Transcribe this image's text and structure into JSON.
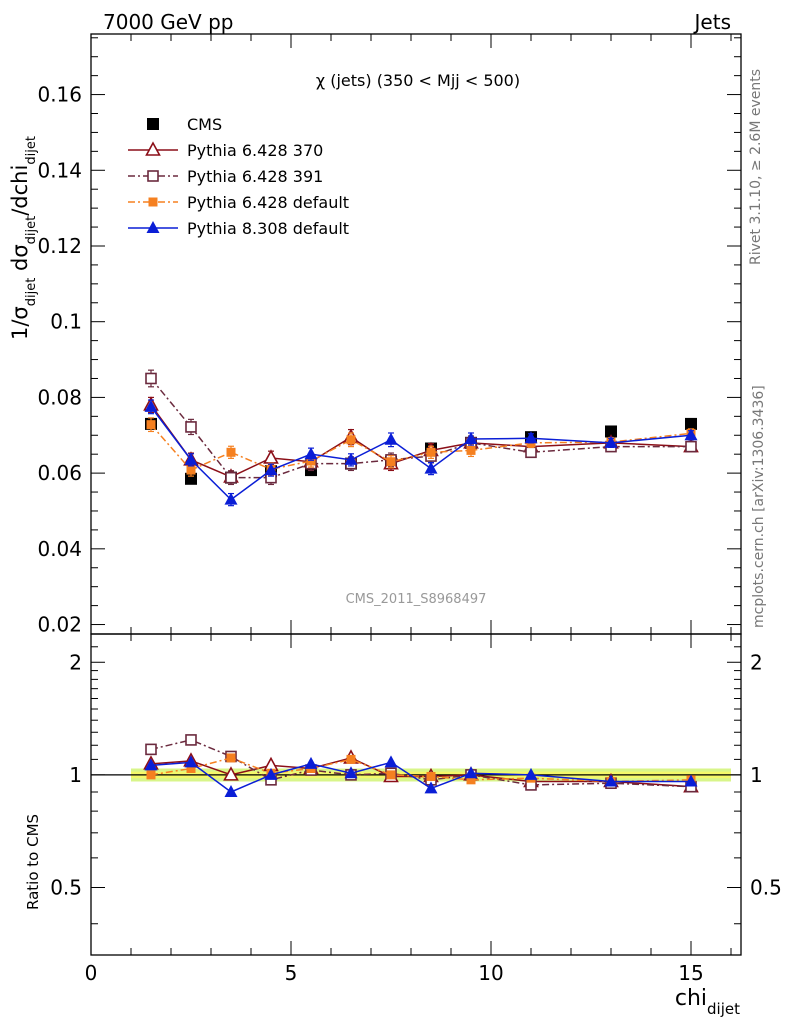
{
  "header": {
    "left": "7000 GeV pp",
    "right": "Jets"
  },
  "side_labels": {
    "rivet": "Rivet 3.1.10, ≥ 2.6M events",
    "mcplots": "mcplots.cern.ch [arXiv:1306.3436]"
  },
  "chart_data": {
    "type": "scatter",
    "title": "χ (jets) (350 < Mjj <  500)",
    "watermark": "CMS_2011_S8968497",
    "xlabel_main": "chi",
    "xlabel_sub": "dijet",
    "ylabel": "1/σ_dijet dσ_dijet/dchi_dijet",
    "ratio_ylabel": "Ratio to CMS",
    "xlim": [
      0,
      16.25
    ],
    "ylim": [
      0.0175,
      0.176
    ],
    "ratio_ylim": [
      0.33,
      2.38
    ],
    "ratio_scale": "log",
    "x_ticks": [
      0,
      5,
      10,
      15
    ],
    "y_ticks": [
      0.02,
      0.04,
      0.06,
      0.08,
      0.1,
      0.12,
      0.14,
      0.16
    ],
    "y_tick_labels": [
      "0.02",
      "0.04",
      "0.06",
      "0.08",
      "0.1",
      "0.12",
      "0.14",
      "0.16"
    ],
    "ratio_ticks": [
      0.5,
      1,
      2
    ],
    "ratio_tick_labels": [
      "0.5",
      "1",
      "2"
    ],
    "x": [
      1.5,
      2.5,
      3.5,
      4.5,
      5.5,
      6.5,
      7.5,
      8.5,
      9.5,
      11,
      13,
      15
    ],
    "bin_edges": [
      1,
      2,
      3,
      4,
      5,
      6,
      7,
      8,
      9,
      10,
      12,
      14,
      16
    ],
    "legend_position": "top-left",
    "series": [
      {
        "name": "CMS",
        "color": "#000000",
        "marker": "square-filled",
        "line": "none",
        "values": [
          0.073,
          0.0585,
          0.0588,
          0.0605,
          0.0608,
          0.0625,
          0.063,
          0.0665,
          0.068,
          0.0695,
          0.071,
          0.073
        ],
        "errors": [
          0.0012,
          0.0012,
          0.0012,
          0.0012,
          0.0012,
          0.0012,
          0.0012,
          0.0012,
          0.0012,
          0.0012,
          0.0012,
          0.0012
        ],
        "ratio": [
          1,
          1,
          1,
          1,
          1,
          1,
          1,
          1,
          1,
          1,
          1,
          1
        ]
      },
      {
        "name": "Pythia 6.428 370",
        "color": "#8b0f18",
        "marker": "triangle-open",
        "line": "solid",
        "values": [
          0.078,
          0.0635,
          0.059,
          0.064,
          0.063,
          0.0695,
          0.0625,
          0.066,
          0.068,
          0.067,
          0.068,
          0.067
        ],
        "errors": [
          0.002,
          0.0018,
          0.0016,
          0.0018,
          0.0018,
          0.002,
          0.0018,
          0.0018,
          0.0018,
          0.0012,
          0.0012,
          0.0012
        ],
        "ratio": [
          1.07,
          1.09,
          1.0,
          1.06,
          1.04,
          1.11,
          0.99,
          0.99,
          1.0,
          0.96,
          0.96,
          0.93
        ]
      },
      {
        "name": "Pythia 6.428 391",
        "color": "#6b2a3e",
        "marker": "square-open",
        "line": "dashdot",
        "values": [
          0.085,
          0.0722,
          0.0588,
          0.0588,
          0.0625,
          0.0625,
          0.0635,
          0.0645,
          0.068,
          0.0655,
          0.067,
          0.067
        ],
        "errors": [
          0.0022,
          0.002,
          0.0018,
          0.0018,
          0.0018,
          0.0018,
          0.0018,
          0.0018,
          0.0018,
          0.0012,
          0.0012,
          0.0012
        ],
        "ratio": [
          1.17,
          1.24,
          1.12,
          0.97,
          1.03,
          1.0,
          1.01,
          0.97,
          1.0,
          0.94,
          0.95,
          0.93
        ]
      },
      {
        "name": "Pythia 6.428 default",
        "color": "#f58020",
        "marker": "square-filled-small",
        "line": "dashdot",
        "values": [
          0.0728,
          0.0608,
          0.0655,
          0.061,
          0.0632,
          0.0688,
          0.063,
          0.0655,
          0.066,
          0.068,
          0.0682,
          0.0705
        ],
        "errors": [
          0.0018,
          0.0016,
          0.0016,
          0.0016,
          0.0016,
          0.0018,
          0.0016,
          0.0016,
          0.0016,
          0.0012,
          0.0012,
          0.0012
        ],
        "ratio": [
          1.0,
          1.04,
          1.11,
          1.01,
          1.04,
          1.1,
          1.0,
          0.99,
          0.97,
          0.98,
          0.96,
          0.97
        ]
      },
      {
        "name": "Pythia 8.308 default",
        "color": "#0a1ed6",
        "marker": "triangle-filled",
        "line": "solid",
        "values": [
          0.0775,
          0.0635,
          0.053,
          0.0608,
          0.065,
          0.0635,
          0.0688,
          0.0612,
          0.069,
          0.0692,
          0.068,
          0.07
        ],
        "errors": [
          0.0018,
          0.0016,
          0.0016,
          0.0016,
          0.0016,
          0.0016,
          0.0018,
          0.0016,
          0.0016,
          0.0012,
          0.0012,
          0.0012
        ],
        "ratio": [
          1.06,
          1.08,
          0.9,
          1.0,
          1.07,
          1.01,
          1.08,
          0.92,
          1.01,
          1.0,
          0.96,
          0.96
        ]
      }
    ]
  }
}
